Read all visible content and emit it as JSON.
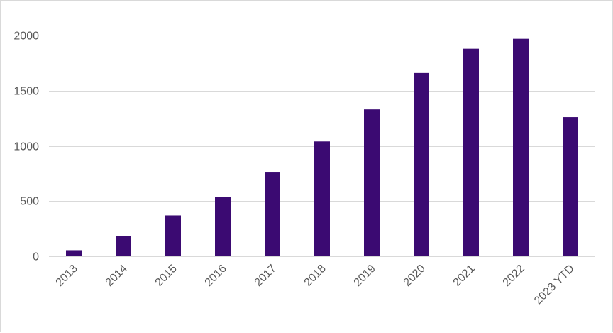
{
  "chart_data": {
    "type": "bar",
    "title": "",
    "xlabel": "",
    "ylabel": "",
    "categories": [
      "2013",
      "2014",
      "2015",
      "2016",
      "2017",
      "2018",
      "2019",
      "2020",
      "2021",
      "2022",
      "2023 YTD"
    ],
    "values": [
      55,
      185,
      370,
      540,
      765,
      1040,
      1330,
      1660,
      1880,
      1970,
      1260
    ],
    "ylim": [
      0,
      2000
    ],
    "yticks": [
      0,
      500,
      1000,
      1500,
      2000
    ],
    "ytick_labels": [
      "0",
      "500",
      "1000",
      "1500",
      "2000"
    ],
    "grid": true,
    "legend": "none",
    "bar_color": "#3b0a72"
  }
}
